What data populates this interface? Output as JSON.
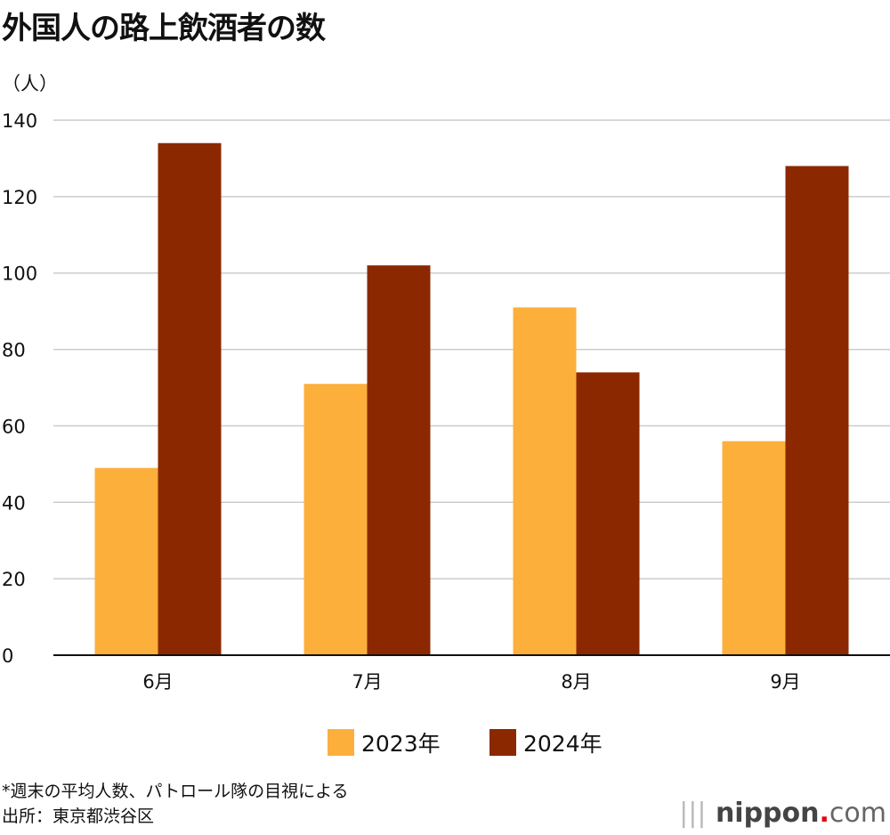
{
  "title": "外国人の路上飲酒者の数",
  "unit": "（人）",
  "colors": {
    "2023年": "#FDAF3C",
    "2024年": "#8B2800"
  },
  "chart_data": {
    "type": "bar",
    "title": "外国人の路上飲酒者の数",
    "ylabel": "（人）",
    "categories": [
      "6月",
      "7月",
      "8月",
      "9月"
    ],
    "series": [
      {
        "name": "2023年",
        "values": [
          49,
          71,
          91,
          56
        ]
      },
      {
        "name": "2024年",
        "values": [
          134,
          102,
          74,
          128
        ]
      }
    ],
    "ylim": [
      0,
      140
    ],
    "yticks": [
      0,
      20,
      40,
      60,
      80,
      100,
      120,
      140
    ],
    "grid": true,
    "legend": "bottom"
  },
  "footnote": "*週末の平均人数、パトロール隊の目視による",
  "source": "出所：東京都渋谷区",
  "logo": "nippon.com"
}
